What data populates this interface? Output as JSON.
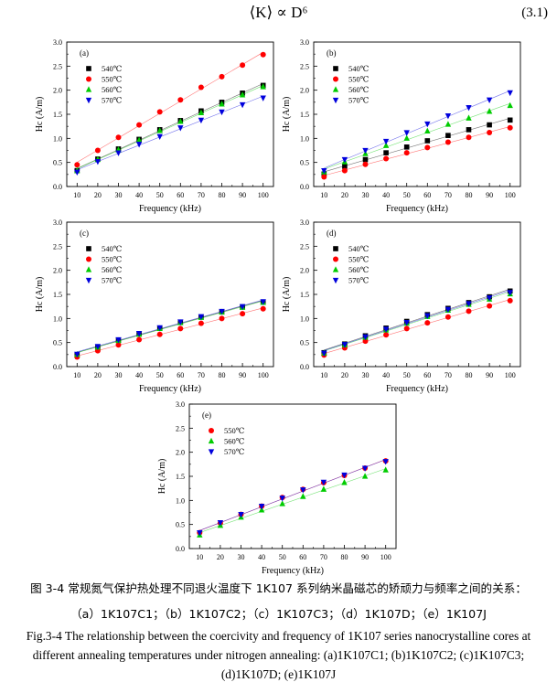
{
  "equation": {
    "formula": "⟨K⟩ ∝ D⁶",
    "number": "(3.1)"
  },
  "caption": {
    "cn_line1": "图 3-4  常规氮气保护热处理不同退火温度下 1K107 系列纳米晶磁芯的矫顽力与频率之间的关系：",
    "cn_line2": "（a）1K107C1；（b）1K107C2；（c）1K107C3；（d）1K107D；（e）1K107J",
    "en_line1": "Fig.3-4 The relationship between the coercivity and frequency of 1K107 series nanocrystalline cores at",
    "en_line2": "different annealing temperatures under nitrogen annealing: (a)1K107C1; (b)1K107C2; (c)1K107C3;",
    "en_line3": "(d)1K107D; (e)1K107J"
  },
  "series_styles": {
    "540℃": {
      "color": "#000000",
      "marker": "square"
    },
    "550℃": {
      "color": "#ff0000",
      "marker": "circle"
    },
    "560℃": {
      "color": "#00cc00",
      "marker": "triangle-up"
    },
    "570℃": {
      "color": "#0000dd",
      "marker": "triangle-down"
    }
  },
  "chart_data": [
    {
      "panel": "(a)",
      "type": "scatter",
      "xlabel": "Frequency (kHz)",
      "ylabel": "Hc (A/m)",
      "xlim": [
        5,
        105
      ],
      "ylim": [
        0,
        3.0
      ],
      "xticks": [
        10,
        20,
        30,
        40,
        50,
        60,
        70,
        80,
        90,
        100
      ],
      "yticks": [
        0.0,
        0.5,
        1.0,
        1.5,
        2.0,
        2.5,
        3.0
      ],
      "ytick_labels": [
        "0.0",
        "0.5",
        "1.0",
        "1.5",
        "2.0",
        "2.5",
        "3.0"
      ],
      "legend": "top-left",
      "fit_lines": true,
      "x": [
        10,
        20,
        30,
        40,
        50,
        60,
        70,
        80,
        90,
        100
      ],
      "series": [
        {
          "name": "540℃",
          "values": [
            0.33,
            0.57,
            0.78,
            0.98,
            1.18,
            1.37,
            1.57,
            1.75,
            1.94,
            2.1
          ]
        },
        {
          "name": "550℃",
          "values": [
            0.45,
            0.75,
            1.02,
            1.28,
            1.55,
            1.8,
            2.06,
            2.28,
            2.52,
            2.74
          ]
        },
        {
          "name": "560℃",
          "values": [
            0.33,
            0.56,
            0.76,
            0.96,
            1.16,
            1.35,
            1.53,
            1.71,
            1.9,
            2.07
          ]
        },
        {
          "name": "570℃",
          "values": [
            0.3,
            0.52,
            0.7,
            0.88,
            1.04,
            1.22,
            1.38,
            1.55,
            1.7,
            1.84
          ]
        }
      ]
    },
    {
      "panel": "(b)",
      "type": "scatter",
      "xlabel": "Frequency (kHz)",
      "ylabel": "Hc (A/m)",
      "xlim": [
        5,
        105
      ],
      "ylim": [
        0,
        3.0
      ],
      "xticks": [
        10,
        20,
        30,
        40,
        50,
        60,
        70,
        80,
        90,
        100
      ],
      "yticks": [
        0.0,
        0.5,
        1.0,
        1.5,
        2.0,
        2.5,
        3.0
      ],
      "ytick_labels": [
        "0.0",
        "0.5",
        "1.0",
        "1.5",
        "2.0",
        "2.5",
        "3.0"
      ],
      "legend": "top-left",
      "fit_lines": true,
      "x": [
        10,
        20,
        30,
        40,
        50,
        60,
        70,
        80,
        90,
        100
      ],
      "series": [
        {
          "name": "540℃",
          "values": [
            0.26,
            0.42,
            0.56,
            0.7,
            0.82,
            0.95,
            1.06,
            1.18,
            1.28,
            1.38
          ]
        },
        {
          "name": "550℃",
          "values": [
            0.2,
            0.33,
            0.46,
            0.58,
            0.7,
            0.81,
            0.92,
            1.02,
            1.12,
            1.22
          ]
        },
        {
          "name": "560℃",
          "values": [
            0.3,
            0.51,
            0.68,
            0.85,
            1.0,
            1.15,
            1.29,
            1.42,
            1.56,
            1.68
          ]
        },
        {
          "name": "570℃",
          "values": [
            0.33,
            0.56,
            0.75,
            0.94,
            1.12,
            1.3,
            1.47,
            1.64,
            1.8,
            1.95
          ]
        }
      ]
    },
    {
      "panel": "(c)",
      "type": "scatter",
      "xlabel": "Frequency (kHz)",
      "ylabel": "Hc (A/m)",
      "xlim": [
        5,
        105
      ],
      "ylim": [
        0,
        3.0
      ],
      "xticks": [
        10,
        20,
        30,
        40,
        50,
        60,
        70,
        80,
        90,
        100
      ],
      "yticks": [
        0.0,
        0.5,
        1.0,
        1.5,
        2.0,
        2.5,
        3.0
      ],
      "ytick_labels": [
        "0.0",
        "0.5",
        "1.0",
        "1.5",
        "2.0",
        "2.5",
        "3.0"
      ],
      "legend": "top-left",
      "fit_lines": true,
      "x": [
        10,
        20,
        30,
        40,
        50,
        60,
        70,
        80,
        90,
        100
      ],
      "series": [
        {
          "name": "540℃",
          "values": [
            0.25,
            0.4,
            0.55,
            0.68,
            0.8,
            0.92,
            1.03,
            1.14,
            1.24,
            1.34
          ]
        },
        {
          "name": "550℃",
          "values": [
            0.2,
            0.33,
            0.45,
            0.56,
            0.67,
            0.79,
            0.9,
            1.0,
            1.1,
            1.2
          ]
        },
        {
          "name": "560℃",
          "values": [
            0.25,
            0.4,
            0.54,
            0.67,
            0.79,
            0.91,
            1.02,
            1.13,
            1.23,
            1.33
          ]
        },
        {
          "name": "570℃",
          "values": [
            0.26,
            0.42,
            0.56,
            0.69,
            0.81,
            0.93,
            1.04,
            1.15,
            1.25,
            1.35
          ]
        }
      ]
    },
    {
      "panel": "(d)",
      "type": "scatter",
      "xlabel": "Frequency (kHz)",
      "ylabel": "Hc (A/m)",
      "xlim": [
        5,
        105
      ],
      "ylim": [
        0,
        3.0
      ],
      "xticks": [
        10,
        20,
        30,
        40,
        50,
        60,
        70,
        80,
        90,
        100
      ],
      "yticks": [
        0.0,
        0.5,
        1.0,
        1.5,
        2.0,
        2.5,
        3.0
      ],
      "ytick_labels": [
        "0.0",
        "0.5",
        "1.0",
        "1.5",
        "2.0",
        "2.5",
        "3.0"
      ],
      "legend": "top-left",
      "fit_lines": true,
      "x": [
        10,
        20,
        30,
        40,
        50,
        60,
        70,
        80,
        90,
        100
      ],
      "series": [
        {
          "name": "540℃",
          "values": [
            0.29,
            0.47,
            0.64,
            0.8,
            0.94,
            1.08,
            1.21,
            1.33,
            1.45,
            1.57
          ]
        },
        {
          "name": "550℃",
          "values": [
            0.24,
            0.39,
            0.53,
            0.66,
            0.79,
            0.91,
            1.03,
            1.15,
            1.26,
            1.37
          ]
        },
        {
          "name": "560℃",
          "values": [
            0.28,
            0.45,
            0.61,
            0.76,
            0.9,
            1.04,
            1.17,
            1.29,
            1.4,
            1.51
          ]
        },
        {
          "name": "570℃",
          "values": [
            0.28,
            0.46,
            0.62,
            0.78,
            0.92,
            1.06,
            1.19,
            1.31,
            1.43,
            1.54
          ]
        }
      ]
    },
    {
      "panel": "(e)",
      "type": "scatter",
      "xlabel": "Frequency (kHz)",
      "ylabel": "Hc (A/m)",
      "xlim": [
        5,
        105
      ],
      "ylim": [
        0,
        3.0
      ],
      "xticks": [
        10,
        20,
        30,
        40,
        50,
        60,
        70,
        80,
        90,
        100
      ],
      "yticks": [
        0.0,
        0.5,
        1.0,
        1.5,
        2.0,
        2.5,
        3.0
      ],
      "ytick_labels": [
        "0.0",
        "0.5",
        "1.0",
        "1.5",
        "2.0",
        "2.5",
        "3.0"
      ],
      "legend": "top-left",
      "fit_lines": true,
      "x": [
        10,
        20,
        30,
        40,
        50,
        60,
        70,
        80,
        90,
        100
      ],
      "series": [
        {
          "name": "550℃",
          "values": [
            0.33,
            0.53,
            0.71,
            0.88,
            1.06,
            1.23,
            1.37,
            1.52,
            1.67,
            1.82
          ]
        },
        {
          "name": "560℃",
          "values": [
            0.28,
            0.48,
            0.65,
            0.8,
            0.93,
            1.08,
            1.23,
            1.37,
            1.5,
            1.63
          ]
        },
        {
          "name": "570℃",
          "values": [
            0.33,
            0.54,
            0.71,
            0.88,
            1.05,
            1.22,
            1.38,
            1.53,
            1.67,
            1.81
          ]
        }
      ]
    }
  ]
}
